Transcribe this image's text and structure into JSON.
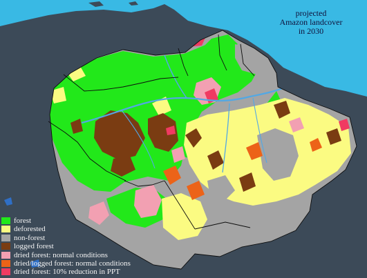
{
  "title": {
    "line1": "projected",
    "line2": "Amazon landcover",
    "line3": "in 2030"
  },
  "legend": {
    "items": [
      {
        "label": "forest",
        "color": "#22e81a"
      },
      {
        "label": "deforested",
        "color": "#fbfb82"
      },
      {
        "label": "non-forest",
        "color": "#a4a4a4"
      },
      {
        "label": "logged forest",
        "color": "#7a3c12"
      },
      {
        "label": "dried forest: normal conditions",
        "color": "#f2a0b2"
      },
      {
        "label": "dried/logged forest: normal conditions",
        "color": "#ec6318"
      },
      {
        "label": "dried forest: 10% reduction in PPT",
        "color": "#f03a62"
      }
    ]
  },
  "colors": {
    "ocean": "#39b9e4",
    "land_outside": "#3c4a58",
    "border": "#0c0c0c",
    "river": "#52a8e4"
  }
}
